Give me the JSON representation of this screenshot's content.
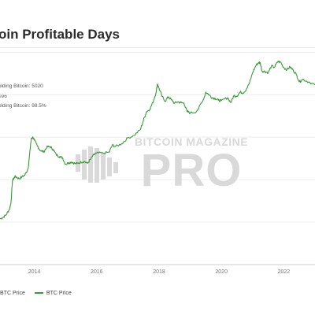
{
  "title": "oin Profitable Days",
  "stats": [
    "olding Bitcoin: 5020",
    "096",
    "olding Bitcoin: 98.5%"
  ],
  "watermark": {
    "line1": "BITCOIN MAGAZINE",
    "line2": "PRO"
  },
  "legend": {
    "items": [
      {
        "label": "BTC Price"
      },
      {
        "label": "BTC Price"
      }
    ]
  },
  "colors": {
    "series": "#3a9b3a",
    "grid": "#ececec",
    "axis": "#777777",
    "watermark": "#d9d9d9"
  },
  "chart_data": {
    "type": "line",
    "title": "oin Profitable Days",
    "xlabel": "",
    "ylabel": "",
    "x_ticks": [
      "2014",
      "2016",
      "2018",
      "2020",
      "2022"
    ],
    "xlim": [
      2012.9,
      2023.0
    ],
    "y_scale": "log",
    "ylim": [
      1,
      120000
    ],
    "grid": true,
    "legend_position": "bottom-left",
    "series": [
      {
        "name": "BTC Price",
        "x": [
          2012.9,
          2013.0,
          2013.1,
          2013.2,
          2013.25,
          2013.3,
          2013.35,
          2013.4,
          2013.5,
          2013.6,
          2013.7,
          2013.8,
          2013.85,
          2013.9,
          2013.95,
          2014.0,
          2014.1,
          2014.2,
          2014.3,
          2014.4,
          2014.5,
          2014.6,
          2014.7,
          2014.8,
          2014.9,
          2015.0,
          2015.1,
          2015.2,
          2015.3,
          2015.4,
          2015.5,
          2015.6,
          2015.7,
          2015.8,
          2015.9,
          2016.0,
          2016.2,
          2016.4,
          2016.5,
          2016.6,
          2016.8,
          2017.0,
          2017.2,
          2017.4,
          2017.5,
          2017.6,
          2017.7,
          2017.8,
          2017.9,
          2017.95,
          2018.0,
          2018.1,
          2018.2,
          2018.3,
          2018.4,
          2018.5,
          2018.6,
          2018.7,
          2018.8,
          2018.9,
          2019.0,
          2019.2,
          2019.4,
          2019.5,
          2019.6,
          2019.7,
          2019.8,
          2019.9,
          2020.0,
          2020.2,
          2020.3,
          2020.4,
          2020.5,
          2020.6,
          2020.7,
          2020.8,
          2020.9,
          2021.0,
          2021.1,
          2021.2,
          2021.25,
          2021.3,
          2021.4,
          2021.5,
          2021.6,
          2021.7,
          2021.8,
          2021.9,
          2022.0,
          2022.1,
          2022.2,
          2022.3,
          2022.4,
          2022.5,
          2022.6,
          2022.8,
          2023.0
        ],
        "values": [
          12,
          13,
          15,
          20,
          28,
          95,
          110,
          120,
          105,
          115,
          130,
          180,
          400,
          900,
          1000,
          850,
          620,
          480,
          450,
          580,
          600,
          520,
          390,
          350,
          330,
          230,
          250,
          260,
          240,
          240,
          260,
          270,
          240,
          300,
          380,
          420,
          420,
          440,
          650,
          600,
          700,
          960,
          1100,
          1500,
          2500,
          4000,
          4500,
          6500,
          11000,
          18000,
          14000,
          9000,
          7000,
          9000,
          7500,
          6300,
          6800,
          6500,
          6300,
          4000,
          3700,
          4000,
          7000,
          11500,
          10000,
          8500,
          8200,
          7400,
          7200,
          8500,
          6500,
          9500,
          9300,
          11500,
          11000,
          13500,
          19000,
          33000,
          48000,
          58000,
          54000,
          36000,
          35000,
          33000,
          47000,
          44000,
          60000,
          58000,
          43000,
          39000,
          45000,
          38000,
          30000,
          20000,
          23000,
          20000,
          17000
        ]
      }
    ]
  }
}
